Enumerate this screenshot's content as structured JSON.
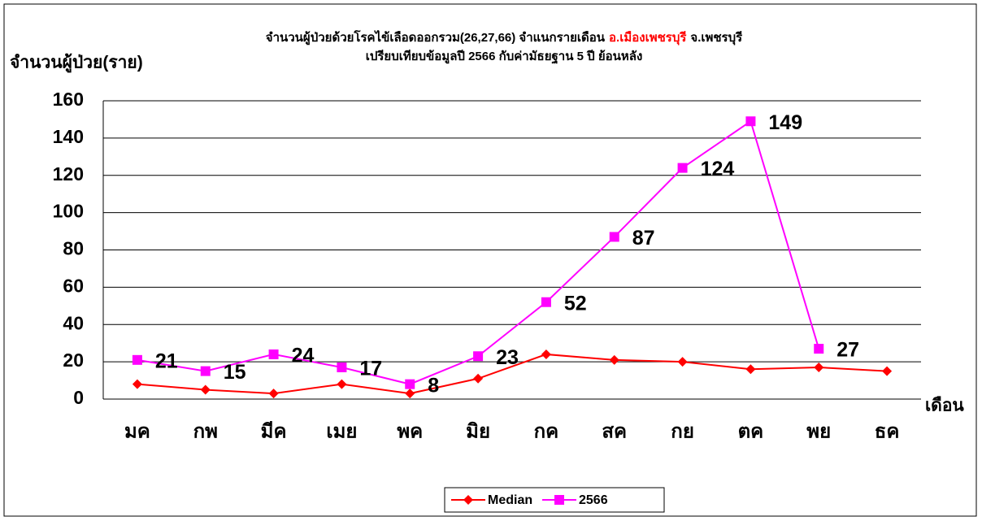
{
  "chart_data": {
    "type": "line",
    "title": [
      "จำนวนผู้ป่วยด้วยโรคไข้เลือดออกรวม(26,27,66) จำแนกรายเดือน",
      "อ.เมืองเพชรบุรี",
      "จ.เพชรบุรี"
    ],
    "title_highlight_color": "#ff0000",
    "subtitle": "เปรียบเทียบข้อมูลปี 2566 กับค่ามัธยฐาน 5 ปี ย้อนหลัง",
    "y_label": "จำนวนผู้ป่วย(ราย)",
    "x_label": "เดือน",
    "categories": [
      "มค",
      "กพ",
      "มีค",
      "เมย",
      "พค",
      "มิย",
      "กค",
      "สค",
      "กย",
      "ตค",
      "พย",
      "ธค"
    ],
    "series": [
      {
        "name": "Median",
        "color": "#ff0000",
        "marker": "diamond",
        "values": [
          8,
          5,
          3,
          8,
          3,
          11,
          24,
          21,
          20,
          16,
          17,
          15
        ]
      },
      {
        "name": "2566",
        "color": "#ff00ff",
        "marker": "square",
        "data_labels": true,
        "values": [
          21,
          15,
          24,
          17,
          8,
          23,
          52,
          87,
          124,
          149,
          27,
          null
        ]
      }
    ],
    "ylim": [
      0,
      160
    ],
    "yticks": [
      0,
      20,
      40,
      60,
      80,
      100,
      120,
      140,
      160
    ],
    "grid": true,
    "legend": "bottom"
  }
}
